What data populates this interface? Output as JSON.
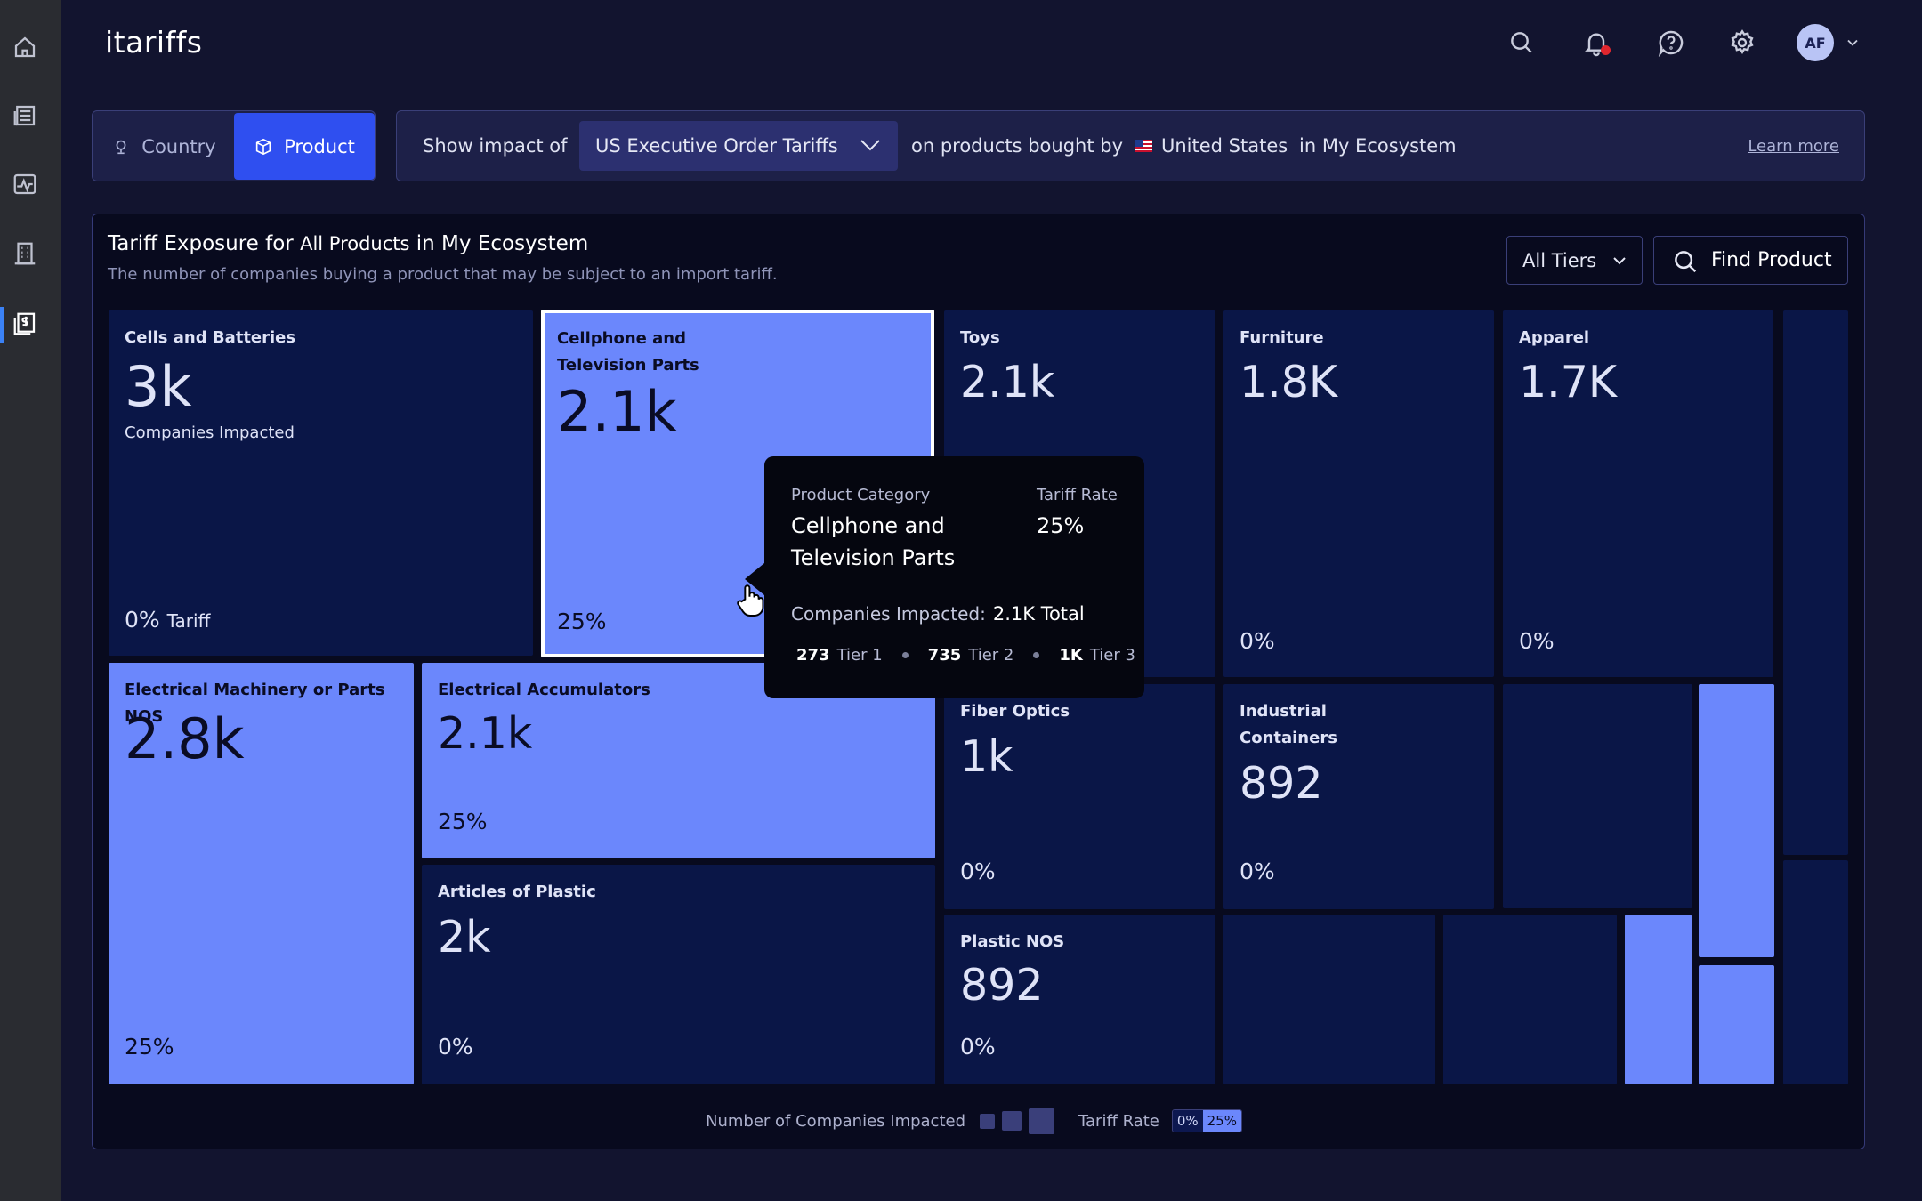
{
  "app": {
    "logo": "itariffs"
  },
  "sidebar": {
    "items": [
      {
        "name": "home",
        "icon": "home-icon"
      },
      {
        "name": "news",
        "icon": "newspaper-icon"
      },
      {
        "name": "analytics",
        "icon": "activity-icon"
      },
      {
        "name": "companies",
        "icon": "building-icon"
      },
      {
        "name": "tariffs",
        "icon": "dollar-document-icon",
        "active": true
      }
    ]
  },
  "header": {
    "icons": [
      "search-icon",
      "bell-icon",
      "help-icon",
      "gear-icon"
    ],
    "avatar_initials": "AF"
  },
  "toggle": {
    "country_label": "Country",
    "product_label": "Product",
    "selected": "Product"
  },
  "filter": {
    "prefix": "Show impact of",
    "tariff_select": "US Executive Order Tariffs",
    "middle": "on products bought by",
    "country": "United States",
    "suffix": "in My Ecosystem",
    "learn_more": "Learn more"
  },
  "panel": {
    "title_prefix": "Tariff Exposure for",
    "title_bold": "All Products",
    "title_suffix": "in My Ecosystem",
    "subtitle": "The number of companies buying a product that may be subject to an import tariff.",
    "tiers_label": "All Tiers",
    "find_label": "Find Product"
  },
  "treemap": {
    "cells": [
      {
        "title": "Cells and Batteries",
        "value": "3k",
        "sub": "Companies Impacted",
        "rate": "0%",
        "rate_suffix": "Tariff"
      },
      {
        "title_line1": "Cellphone and",
        "title_line2": "Television Parts",
        "value": "2.1k",
        "rate": "25%"
      },
      {
        "title": "Toys",
        "value": "2.1k"
      },
      {
        "title": "Furniture",
        "value": "1.8K",
        "rate": "0%"
      },
      {
        "title": "Apparel",
        "value": "1.7K",
        "rate": "0%"
      },
      {
        "title": "Electrical Machinery or Parts NOS",
        "value": "2.8k",
        "rate": "25%"
      },
      {
        "title": "Electrical Accumulators",
        "value": "2.1k",
        "rate": "25%"
      },
      {
        "title": "Articles of Plastic",
        "value": "2k",
        "rate": "0%"
      },
      {
        "title": "Fiber Optics",
        "value": "1k",
        "rate": "0%"
      },
      {
        "title_line1": "Industrial",
        "title_line2": "Containers",
        "value": "892",
        "rate": "0%"
      },
      {
        "title": "Plastic NOS",
        "value": "892",
        "rate": "0%"
      }
    ]
  },
  "tooltip": {
    "category_label": "Product Category",
    "category_line1": "Cellphone and",
    "category_line2": "Television Parts",
    "rate_label": "Tariff Rate",
    "rate_value": "25%",
    "companies_label": "Companies Impacted:",
    "companies_total": "2.1K Total",
    "tier1_count": "273",
    "tier1_label": "Tier 1",
    "tier2_count": "735",
    "tier2_label": "Tier 2",
    "tier3_count": "1K",
    "tier3_label": "Tier 3"
  },
  "legend": {
    "companies_label": "Number of Companies Impacted",
    "rate_label": "Tariff Rate",
    "rate_low": "0%",
    "rate_high": "25%"
  },
  "colors": {
    "accent": "#2f4ff0",
    "tariff_high": "#6b87fc",
    "tariff_zero": "#0a1647"
  }
}
